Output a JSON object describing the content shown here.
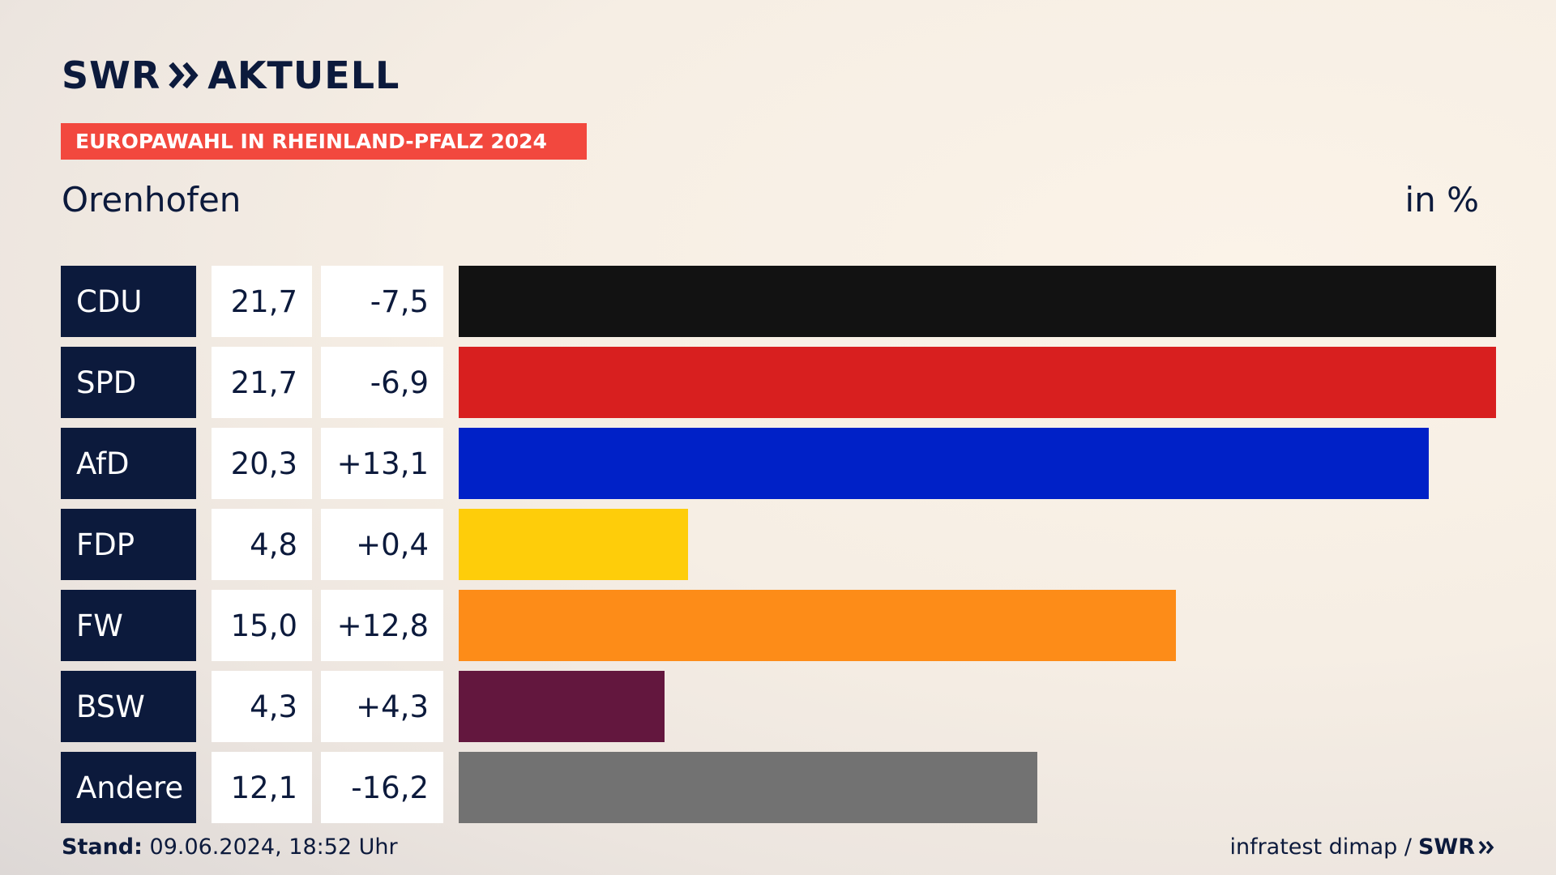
{
  "brand": {
    "name": "SWR",
    "product": "AKTUELL",
    "logo_icon": "double-chevron-icon"
  },
  "banner": "EUROPAWAHL IN RHEINLAND-PFALZ 2024",
  "region": "Orenhofen",
  "unit": "in %",
  "footer": {
    "stand_label": "Stand:",
    "stand_value": "09.06.2024, 18:52 Uhr",
    "source": "infratest dimap /",
    "source_brand": "SWR"
  },
  "colors": {
    "navy": "#0c1a3c",
    "banner": "#f2483e"
  },
  "chart_data": {
    "type": "bar",
    "orientation": "horizontal",
    "xlim": [
      0,
      21.7
    ],
    "categories": [
      "CDU",
      "SPD",
      "AfD",
      "FDP",
      "FW",
      "BSW",
      "Andere"
    ],
    "values": [
      21.7,
      21.7,
      20.3,
      4.8,
      15.0,
      4.3,
      12.1
    ],
    "value_labels": [
      "21,7",
      "21,7",
      "20,3",
      "4,8",
      "15,0",
      "4,3",
      "12,1"
    ],
    "diff_labels": [
      "-7,5",
      "-6,9",
      "+13,1",
      "+0,4",
      "+12,8",
      "+4,3",
      "-16,2"
    ],
    "bar_colors": [
      "#121212",
      "#d81f1f",
      "#0021c7",
      "#fecd0a",
      "#fd8c18",
      "#63173e",
      "#727272"
    ]
  }
}
